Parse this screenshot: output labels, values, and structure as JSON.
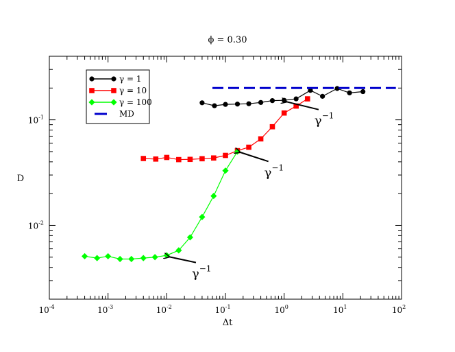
{
  "chart_data": {
    "type": "line",
    "title": "ϕ = 0.30",
    "xlabel": "Δt",
    "ylabel": "D",
    "xscale": "log",
    "yscale": "log",
    "xlim": [
      0.0001,
      100
    ],
    "ylim": [
      0.002,
      0.4
    ],
    "x_ticks": [
      {
        "base": "10",
        "exp": "-4",
        "value": 0.0001
      },
      {
        "base": "10",
        "exp": "-3",
        "value": 0.001
      },
      {
        "base": "10",
        "exp": "-2",
        "value": 0.01
      },
      {
        "base": "10",
        "exp": "-1",
        "value": 0.1
      },
      {
        "base": "10",
        "exp": "0",
        "value": 1
      },
      {
        "base": "10",
        "exp": "1",
        "value": 10
      },
      {
        "base": "10",
        "exp": "2",
        "value": 100
      }
    ],
    "y_ticks": [
      {
        "base": "10",
        "exp": "-2",
        "value": 0.01
      },
      {
        "base": "10",
        "exp": "-1",
        "value": 0.1
      }
    ],
    "legend_position": "top-left",
    "series": [
      {
        "name": "γ = 1",
        "color": "#000000",
        "marker": "circle",
        "points": [
          {
            "x": 0.04,
            "y": 0.145
          },
          {
            "x": 0.065,
            "y": 0.136
          },
          {
            "x": 0.1,
            "y": 0.14
          },
          {
            "x": 0.16,
            "y": 0.141
          },
          {
            "x": 0.25,
            "y": 0.142
          },
          {
            "x": 0.4,
            "y": 0.146
          },
          {
            "x": 0.63,
            "y": 0.152
          },
          {
            "x": 1.0,
            "y": 0.153
          },
          {
            "x": 1.6,
            "y": 0.158
          },
          {
            "x": 2.8,
            "y": 0.19
          },
          {
            "x": 4.5,
            "y": 0.167
          },
          {
            "x": 8.0,
            "y": 0.198
          },
          {
            "x": 13.0,
            "y": 0.18
          },
          {
            "x": 22.0,
            "y": 0.185
          }
        ]
      },
      {
        "name": "γ = 10",
        "color": "#ff0000",
        "marker": "square",
        "points": [
          {
            "x": 0.004,
            "y": 0.043
          },
          {
            "x": 0.0065,
            "y": 0.0425
          },
          {
            "x": 0.01,
            "y": 0.044
          },
          {
            "x": 0.016,
            "y": 0.042
          },
          {
            "x": 0.025,
            "y": 0.0422
          },
          {
            "x": 0.04,
            "y": 0.0428
          },
          {
            "x": 0.063,
            "y": 0.0435
          },
          {
            "x": 0.1,
            "y": 0.046
          },
          {
            "x": 0.16,
            "y": 0.051
          },
          {
            "x": 0.25,
            "y": 0.055
          },
          {
            "x": 0.4,
            "y": 0.066
          },
          {
            "x": 0.63,
            "y": 0.086
          },
          {
            "x": 1.0,
            "y": 0.116
          },
          {
            "x": 1.6,
            "y": 0.135
          },
          {
            "x": 2.5,
            "y": 0.158
          }
        ]
      },
      {
        "name": "γ = 100",
        "color": "#00ff00",
        "marker": "diamond",
        "points": [
          {
            "x": 0.0004,
            "y": 0.0051
          },
          {
            "x": 0.00065,
            "y": 0.0049
          },
          {
            "x": 0.001,
            "y": 0.0051
          },
          {
            "x": 0.0016,
            "y": 0.0048
          },
          {
            "x": 0.0025,
            "y": 0.0048
          },
          {
            "x": 0.004,
            "y": 0.0049
          },
          {
            "x": 0.0063,
            "y": 0.005
          },
          {
            "x": 0.01,
            "y": 0.0052
          },
          {
            "x": 0.016,
            "y": 0.0058
          },
          {
            "x": 0.025,
            "y": 0.0077
          },
          {
            "x": 0.04,
            "y": 0.012
          },
          {
            "x": 0.063,
            "y": 0.019
          },
          {
            "x": 0.1,
            "y": 0.033
          },
          {
            "x": 0.16,
            "y": 0.05
          }
        ]
      },
      {
        "name": "MD",
        "color": "#0000cc",
        "style": "dashed",
        "points": [
          {
            "x": 0.06,
            "y": 0.2
          },
          {
            "x": 80,
            "y": 0.2
          }
        ]
      }
    ],
    "annotations": [
      {
        "text": "γ",
        "superscript": "−1",
        "arrow_to": {
          "x": 0.01,
          "y": 0.0052
        },
        "label_at": {
          "x": 0.035,
          "y": 0.0032
        }
      },
      {
        "text": "γ",
        "superscript": "−1",
        "arrow_to": {
          "x": 0.16,
          "y": 0.051
        },
        "label_at": {
          "x": 0.6,
          "y": 0.029
        }
      },
      {
        "text": "γ",
        "superscript": "−1",
        "arrow_to": {
          "x": 1.0,
          "y": 0.153
        },
        "label_at": {
          "x": 4.3,
          "y": 0.09
        }
      }
    ]
  }
}
